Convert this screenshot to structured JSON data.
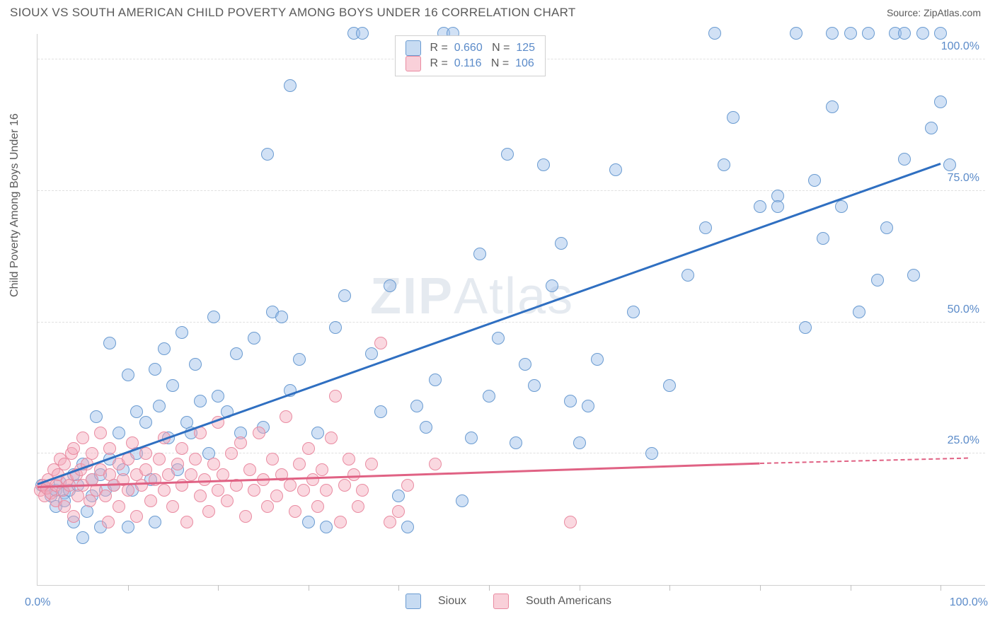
{
  "header": {
    "title": "SIOUX VS SOUTH AMERICAN CHILD POVERTY AMONG BOYS UNDER 16 CORRELATION CHART",
    "source": "Source: ZipAtlas.com"
  },
  "chart": {
    "type": "scatter",
    "y_label": "Child Poverty Among Boys Under 16",
    "background_color": "#ffffff",
    "grid_color": "#e0e0e0",
    "axis_color": "#d0d0d0",
    "tick_label_color": "#5b8bc9",
    "text_color": "#5a5a5a",
    "xlim": [
      0,
      105
    ],
    "ylim": [
      0,
      105
    ],
    "x_ticks": [
      10,
      20,
      30,
      40,
      50,
      60,
      70,
      80,
      90,
      100
    ],
    "y_gridlines": [
      25,
      50,
      75,
      100
    ],
    "y_tick_labels": [
      "25.0%",
      "50.0%",
      "75.0%",
      "100.0%"
    ],
    "x_axis_labels": {
      "left": "0.0%",
      "right": "100.0%"
    },
    "marker_radius": 9,
    "marker_stroke_width": 1.2,
    "watermark": "ZIPAtlas",
    "series": [
      {
        "name": "Sioux",
        "fill": "rgba(153,189,232,0.45)",
        "stroke": "#6a9bd1",
        "trend_color": "#2f6fc1",
        "trend": {
          "x1": 0,
          "y1": 19,
          "x2": 100,
          "y2": 80,
          "dash_from": 100
        },
        "points": [
          [
            0.5,
            19
          ],
          [
            1,
            18.5
          ],
          [
            1.5,
            17
          ],
          [
            2,
            18
          ],
          [
            2,
            15
          ],
          [
            2.5,
            19.5
          ],
          [
            3,
            17.5
          ],
          [
            3,
            16
          ],
          [
            3.5,
            18
          ],
          [
            4,
            21
          ],
          [
            4,
            12
          ],
          [
            4.5,
            19
          ],
          [
            5,
            9
          ],
          [
            5,
            23
          ],
          [
            5.5,
            14
          ],
          [
            6,
            20
          ],
          [
            6,
            17
          ],
          [
            6.5,
            32
          ],
          [
            7,
            21
          ],
          [
            7,
            11
          ],
          [
            7.5,
            18
          ],
          [
            8,
            24
          ],
          [
            8,
            46
          ],
          [
            8.5,
            19
          ],
          [
            9,
            29
          ],
          [
            9.5,
            22
          ],
          [
            10,
            40
          ],
          [
            10,
            11
          ],
          [
            10.5,
            18
          ],
          [
            11,
            33
          ],
          [
            11,
            25
          ],
          [
            12,
            31
          ],
          [
            12.5,
            20
          ],
          [
            13,
            41
          ],
          [
            13,
            12
          ],
          [
            13.5,
            34
          ],
          [
            14,
            45
          ],
          [
            14.5,
            28
          ],
          [
            15,
            38
          ],
          [
            15.5,
            22
          ],
          [
            16,
            48
          ],
          [
            16.5,
            31
          ],
          [
            17,
            29
          ],
          [
            17.5,
            42
          ],
          [
            18,
            35
          ],
          [
            19,
            25
          ],
          [
            19.5,
            51
          ],
          [
            20,
            36
          ],
          [
            21,
            33
          ],
          [
            22,
            44
          ],
          [
            22.5,
            29
          ],
          [
            24,
            47
          ],
          [
            25,
            30
          ],
          [
            25.5,
            82
          ],
          [
            26,
            52
          ],
          [
            27,
            51
          ],
          [
            28,
            37
          ],
          [
            28,
            95
          ],
          [
            29,
            43
          ],
          [
            30,
            12
          ],
          [
            31,
            29
          ],
          [
            32,
            11
          ],
          [
            33,
            49
          ],
          [
            34,
            55
          ],
          [
            35,
            105
          ],
          [
            36,
            105
          ],
          [
            37,
            44
          ],
          [
            38,
            33
          ],
          [
            39,
            57
          ],
          [
            40,
            17
          ],
          [
            41,
            11
          ],
          [
            42,
            34
          ],
          [
            43,
            30
          ],
          [
            44,
            39
          ],
          [
            45,
            105
          ],
          [
            46,
            105
          ],
          [
            47,
            16
          ],
          [
            48,
            28
          ],
          [
            49,
            63
          ],
          [
            50,
            36
          ],
          [
            51,
            47
          ],
          [
            52,
            82
          ],
          [
            53,
            27
          ],
          [
            54,
            42
          ],
          [
            55,
            38
          ],
          [
            56,
            80
          ],
          [
            57,
            57
          ],
          [
            58,
            65
          ],
          [
            59,
            35
          ],
          [
            60,
            27
          ],
          [
            61,
            34
          ],
          [
            62,
            43
          ],
          [
            64,
            79
          ],
          [
            66,
            52
          ],
          [
            68,
            25
          ],
          [
            70,
            38
          ],
          [
            72,
            59
          ],
          [
            74,
            68
          ],
          [
            75,
            105
          ],
          [
            76,
            80
          ],
          [
            77,
            89
          ],
          [
            80,
            72
          ],
          [
            82,
            74
          ],
          [
            84,
            105
          ],
          [
            85,
            49
          ],
          [
            86,
            77
          ],
          [
            87,
            66
          ],
          [
            88,
            91
          ],
          [
            89,
            72
          ],
          [
            90,
            105
          ],
          [
            91,
            52
          ],
          [
            92,
            105
          ],
          [
            93,
            58
          ],
          [
            94,
            68
          ],
          [
            95,
            105
          ],
          [
            96,
            81
          ],
          [
            97,
            59
          ],
          [
            98,
            105
          ],
          [
            99,
            87
          ],
          [
            100,
            92
          ],
          [
            100,
            105
          ],
          [
            101,
            80
          ],
          [
            96,
            105
          ],
          [
            88,
            105
          ],
          [
            82,
            72
          ]
        ]
      },
      {
        "name": "South Americans",
        "fill": "rgba(244,169,186,0.45)",
        "stroke": "#e98ba1",
        "trend_color": "#e06284",
        "trend": {
          "x1": 0,
          "y1": 18.5,
          "x2": 80,
          "y2": 23,
          "dash_from": 80,
          "dash_to": 103,
          "dash_y": 24
        },
        "points": [
          [
            0.3,
            18
          ],
          [
            0.6,
            19
          ],
          [
            0.8,
            17
          ],
          [
            1,
            18.5
          ],
          [
            1.2,
            20
          ],
          [
            1.5,
            17.5
          ],
          [
            1.8,
            22
          ],
          [
            2,
            16
          ],
          [
            2,
            19
          ],
          [
            2.3,
            21
          ],
          [
            2.5,
            24
          ],
          [
            2.8,
            18
          ],
          [
            3,
            23
          ],
          [
            3,
            15
          ],
          [
            3.3,
            20
          ],
          [
            3.5,
            19
          ],
          [
            3.8,
            25
          ],
          [
            4,
            26
          ],
          [
            4,
            13
          ],
          [
            4.3,
            21
          ],
          [
            4.5,
            17
          ],
          [
            4.8,
            22
          ],
          [
            5,
            19
          ],
          [
            5,
            28
          ],
          [
            5.5,
            23
          ],
          [
            5.8,
            16
          ],
          [
            6,
            20
          ],
          [
            6,
            25
          ],
          [
            6.5,
            18
          ],
          [
            7,
            22
          ],
          [
            7,
            29
          ],
          [
            7.5,
            17
          ],
          [
            7.8,
            12
          ],
          [
            8,
            21
          ],
          [
            8,
            26
          ],
          [
            8.5,
            19
          ],
          [
            9,
            23
          ],
          [
            9,
            15
          ],
          [
            9.5,
            20
          ],
          [
            10,
            24
          ],
          [
            10,
            18
          ],
          [
            10.5,
            27
          ],
          [
            11,
            21
          ],
          [
            11,
            13
          ],
          [
            11.5,
            19
          ],
          [
            12,
            25
          ],
          [
            12,
            22
          ],
          [
            12.5,
            16
          ],
          [
            13,
            20
          ],
          [
            13.5,
            24
          ],
          [
            14,
            18
          ],
          [
            14,
            28
          ],
          [
            14.5,
            21
          ],
          [
            15,
            15
          ],
          [
            15.5,
            23
          ],
          [
            16,
            19
          ],
          [
            16,
            26
          ],
          [
            16.5,
            12
          ],
          [
            17,
            21
          ],
          [
            17.5,
            24
          ],
          [
            18,
            17
          ],
          [
            18,
            29
          ],
          [
            18.5,
            20
          ],
          [
            19,
            14
          ],
          [
            19.5,
            23
          ],
          [
            20,
            18
          ],
          [
            20,
            31
          ],
          [
            20.5,
            21
          ],
          [
            21,
            16
          ],
          [
            21.5,
            25
          ],
          [
            22,
            19
          ],
          [
            22.5,
            27
          ],
          [
            23,
            13
          ],
          [
            23.5,
            22
          ],
          [
            24,
            18
          ],
          [
            24.5,
            29
          ],
          [
            25,
            20
          ],
          [
            25.5,
            15
          ],
          [
            26,
            24
          ],
          [
            26.5,
            17
          ],
          [
            27,
            21
          ],
          [
            27.5,
            32
          ],
          [
            28,
            19
          ],
          [
            28.5,
            14
          ],
          [
            29,
            23
          ],
          [
            29.5,
            18
          ],
          [
            30,
            26
          ],
          [
            30.5,
            20
          ],
          [
            31,
            15
          ],
          [
            31.5,
            22
          ],
          [
            32,
            18
          ],
          [
            32.5,
            28
          ],
          [
            33,
            36
          ],
          [
            33.5,
            12
          ],
          [
            34,
            19
          ],
          [
            34.5,
            24
          ],
          [
            35,
            21
          ],
          [
            35.5,
            15
          ],
          [
            36,
            18
          ],
          [
            37,
            23
          ],
          [
            38,
            46
          ],
          [
            39,
            12
          ],
          [
            40,
            14
          ],
          [
            41,
            19
          ],
          [
            59,
            12
          ],
          [
            44,
            23
          ]
        ]
      }
    ],
    "stats_legend": {
      "rows": [
        {
          "swatch_fill": "rgba(153,189,232,0.55)",
          "swatch_stroke": "#6a9bd1",
          "r": "0.660",
          "n": "125"
        },
        {
          "swatch_fill": "rgba(244,169,186,0.55)",
          "swatch_stroke": "#e98ba1",
          "r": "0.116",
          "n": "106"
        }
      ],
      "label_color": "#5a5a5a",
      "value_color": "#5b8bc9"
    },
    "bottom_legend": [
      {
        "swatch_fill": "rgba(153,189,232,0.55)",
        "swatch_stroke": "#6a9bd1",
        "label": "Sioux"
      },
      {
        "swatch_fill": "rgba(244,169,186,0.55)",
        "swatch_stroke": "#e98ba1",
        "label": "South Americans"
      }
    ]
  }
}
